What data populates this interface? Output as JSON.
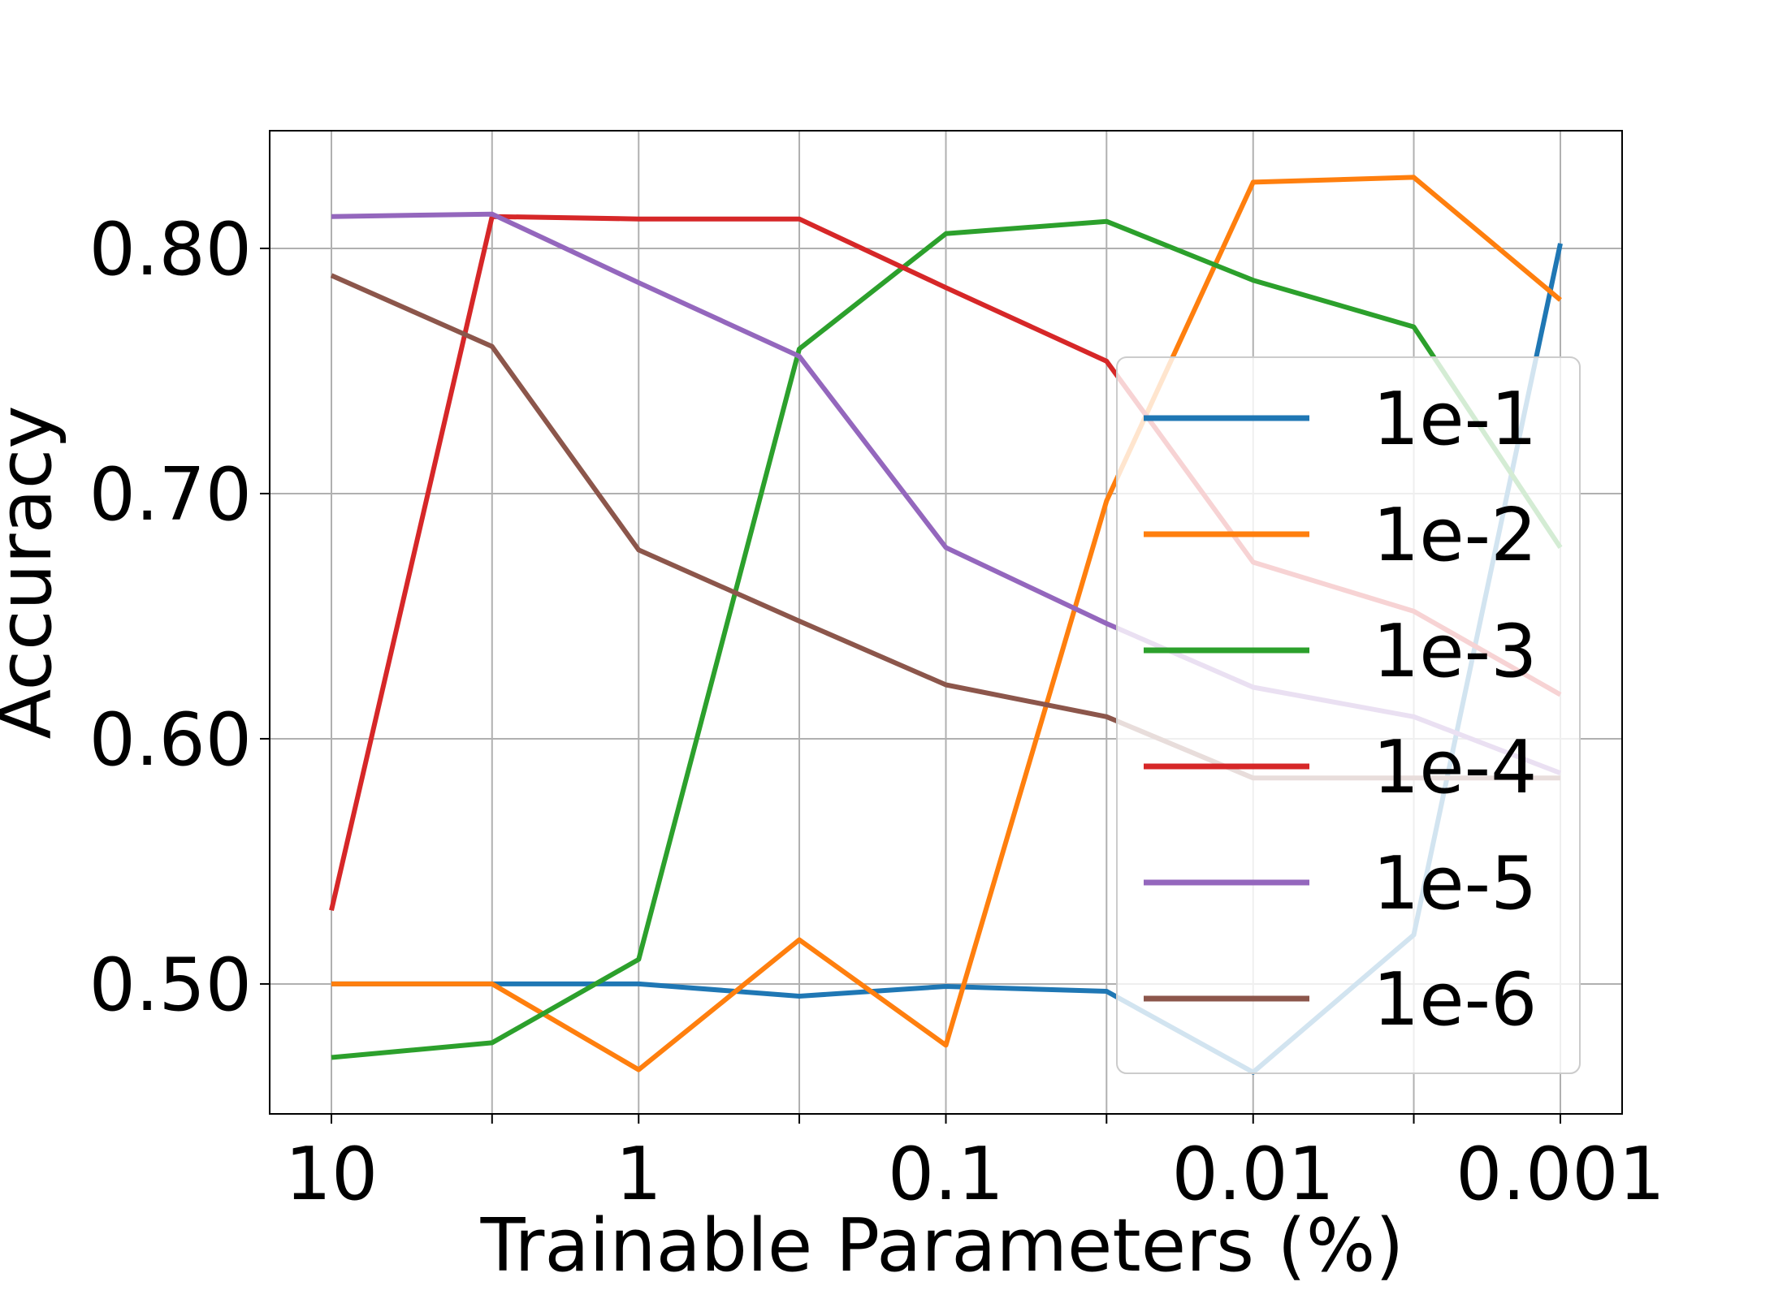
{
  "chart_data": {
    "type": "line",
    "xlabel": "Trainable Parameters (%)",
    "ylabel": "Accuracy",
    "x": [
      10,
      3,
      1,
      0.3,
      0.1,
      0.03,
      0.01,
      0.003,
      0.001
    ],
    "x_scale": "log",
    "x_reversed": true,
    "x_ticks": [
      10,
      3,
      1,
      0.3,
      0.1,
      0.03,
      0.01,
      0.003,
      0.001
    ],
    "x_tick_labels": [
      "10",
      "",
      "1",
      "",
      "0.1",
      "",
      "0.01",
      "",
      "0.001"
    ],
    "ylim": [
      0.447,
      0.848
    ],
    "y_ticks": [
      0.5,
      0.6,
      0.7,
      0.8
    ],
    "y_tick_labels": [
      "0.50",
      "0.60",
      "0.70",
      "0.80"
    ],
    "grid": true,
    "legend_position": "center-right",
    "series": [
      {
        "name": "1e-1",
        "color": "#1f77b4",
        "values": [
          0.5,
          0.5,
          0.5,
          0.495,
          0.499,
          0.497,
          0.464,
          0.52,
          0.802
        ]
      },
      {
        "name": "1e-2",
        "color": "#ff7f0e",
        "values": [
          0.5,
          0.5,
          0.465,
          0.518,
          0.475,
          0.697,
          0.827,
          0.829,
          0.779
        ]
      },
      {
        "name": "1e-3",
        "color": "#2ca02c",
        "values": [
          0.47,
          0.476,
          0.51,
          0.759,
          0.806,
          0.811,
          0.787,
          0.768,
          0.678
        ]
      },
      {
        "name": "1e-4",
        "color": "#d62728",
        "values": [
          0.53,
          0.813,
          0.812,
          0.812,
          0.784,
          0.754,
          0.672,
          0.652,
          0.618
        ]
      },
      {
        "name": "1e-5",
        "color": "#9467bd",
        "values": [
          0.813,
          0.814,
          0.786,
          0.756,
          0.678,
          0.647,
          0.621,
          0.609,
          0.586
        ]
      },
      {
        "name": "1e-6",
        "color": "#8c564b",
        "values": [
          0.789,
          0.76,
          0.677,
          0.648,
          0.622,
          0.609,
          0.584,
          0.584,
          0.584
        ]
      }
    ]
  }
}
